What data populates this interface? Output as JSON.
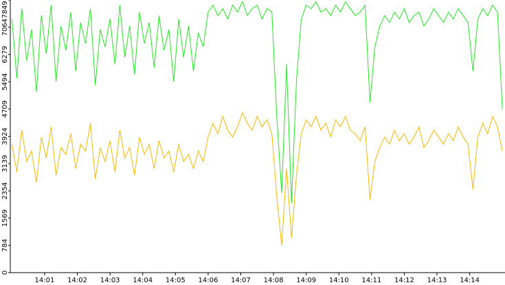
{
  "chart_data": {
    "type": "line",
    "x": [
      840,
      840.15,
      840.3,
      840.45,
      840.6,
      840.75,
      840.9,
      841.05,
      841.2,
      841.35,
      841.5,
      841.65,
      841.8,
      841.95,
      842.1,
      842.25,
      842.4,
      842.55,
      842.7,
      842.85,
      843,
      843.15,
      843.3,
      843.45,
      843.6,
      843.75,
      843.9,
      844.05,
      844.2,
      844.35,
      844.5,
      844.65,
      844.8,
      844.95,
      845.1,
      845.25,
      845.4,
      845.55,
      845.7,
      845.85,
      846,
      846.15,
      846.3,
      846.45,
      846.6,
      846.75,
      846.9,
      847.05,
      847.2,
      847.35,
      847.5,
      847.65,
      847.8,
      847.95,
      848.1,
      848.25,
      848.4,
      848.55,
      848.7,
      848.85,
      849,
      849.15,
      849.3,
      849.45,
      849.6,
      849.75,
      849.9,
      850.05,
      850.2,
      850.35,
      850.5,
      850.65,
      850.8,
      850.95,
      851.1,
      851.25,
      851.4,
      851.55,
      851.7,
      851.85,
      852,
      852.15,
      852.3,
      852.45,
      852.6,
      852.75,
      852.9,
      853.05,
      853.2,
      853.35,
      853.5,
      853.65,
      853.8,
      853.95,
      854.1,
      854.25,
      854.4,
      854.55,
      854.7,
      854.85,
      855
    ],
    "series": [
      {
        "color": "#22e622",
        "values": [
          7300,
          5600,
          7600,
          6100,
          7000,
          5200,
          7400,
          6300,
          7700,
          5500,
          7100,
          6400,
          7500,
          5800,
          7200,
          6600,
          7600,
          5400,
          7000,
          6500,
          7300,
          6000,
          7700,
          6200,
          7100,
          5700,
          7500,
          6600,
          7200,
          5900,
          7400,
          6400,
          7000,
          5500,
          7300,
          6200,
          7100,
          5800,
          6900,
          6500,
          7500,
          7700,
          7400,
          7600,
          7300,
          7700,
          7500,
          7800,
          7400,
          7600,
          7700,
          7300,
          7600,
          7500,
          4500,
          2300,
          6000,
          2000,
          5500,
          7300,
          7700,
          7600,
          7800,
          7500,
          7600,
          7400,
          7700,
          7500,
          7800,
          7600,
          7400,
          7500,
          7700,
          4900,
          6500,
          7100,
          7400,
          7200,
          7500,
          7300,
          7600,
          7200,
          7400,
          7500,
          7100,
          7300,
          7600,
          7400,
          7200,
          7500,
          7300,
          7600,
          7400,
          7200,
          5800,
          7300,
          7600,
          7400,
          7700,
          7500,
          4700
        ]
      },
      {
        "color": "#f5b800",
        "values": [
          3700,
          2900,
          4100,
          3200,
          3500,
          2600,
          3900,
          3300,
          4200,
          2800,
          3600,
          3400,
          4000,
          3000,
          3700,
          3500,
          4300,
          2700,
          3600,
          3200,
          3800,
          2900,
          4100,
          3300,
          3600,
          2800,
          3900,
          3400,
          3700,
          3000,
          3800,
          3300,
          3500,
          2900,
          3700,
          3200,
          3400,
          3000,
          3500,
          3200,
          3900,
          4300,
          4000,
          4500,
          4100,
          3900,
          4200,
          4600,
          4300,
          4100,
          4500,
          4200,
          4400,
          4000,
          2200,
          784,
          3000,
          1000,
          2800,
          4000,
          4400,
          4200,
          4500,
          4100,
          4300,
          3900,
          4400,
          4200,
          4500,
          4100,
          4000,
          3800,
          4200,
          2100,
          3200,
          3600,
          3900,
          3700,
          4100,
          3800,
          4000,
          3700,
          3900,
          4200,
          3600,
          3800,
          4100,
          3900,
          3700,
          4000,
          3800,
          4200,
          3900,
          3700,
          2400,
          3900,
          4300,
          4000,
          4500,
          4200,
          3500
        ]
      }
    ],
    "xlim": [
      839.95,
      855.08
    ],
    "xticks": [
      {
        "value": 841,
        "label": "14:01"
      },
      {
        "value": 842,
        "label": "14:02"
      },
      {
        "value": 843,
        "label": "14:03"
      },
      {
        "value": 844,
        "label": "14:04"
      },
      {
        "value": 845,
        "label": "14:05"
      },
      {
        "value": 846,
        "label": "14:06"
      },
      {
        "value": 847,
        "label": "14:07"
      },
      {
        "value": 848,
        "label": "14:08"
      },
      {
        "value": 849,
        "label": "14:09"
      },
      {
        "value": 850,
        "label": "14:10"
      },
      {
        "value": 851,
        "label": "14:11"
      },
      {
        "value": 852,
        "label": "14:12"
      },
      {
        "value": 853,
        "label": "14:13"
      },
      {
        "value": 854,
        "label": "14:14"
      }
    ],
    "ylim": [
      0,
      7849
    ],
    "yticks": [
      0,
      784,
      1569,
      2354,
      3139,
      3924,
      4709,
      5494,
      6279,
      7064,
      7849
    ]
  }
}
